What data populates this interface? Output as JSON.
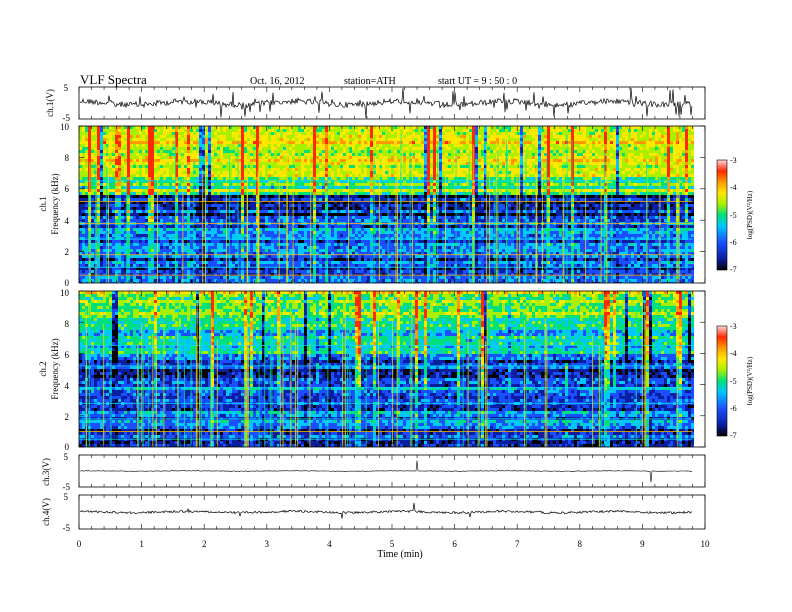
{
  "header": {
    "title": "VLF Spectra",
    "date": "Oct. 16, 2012",
    "station": "station=ATH",
    "start": "start UT = 9 : 50 : 0"
  },
  "colors": {
    "spectro_stops": [
      "#000000",
      "#0a1fa0",
      "#1a4fff",
      "#00c8ff",
      "#00e07a",
      "#a8f000",
      "#ffe800",
      "#ff9a00",
      "#ff2a00",
      "#ffd8d8"
    ],
    "waveform": "#000000"
  },
  "chart_data": [
    {
      "type": "line",
      "panel": "ch1-waveform",
      "ylabel": "ch.1(V)",
      "yticks": [
        "5",
        "-5"
      ],
      "ylim": [
        -5,
        5
      ],
      "xlim": [
        0,
        10
      ],
      "x_end_min": 9.8,
      "trace_level_v": 0.0
    },
    {
      "type": "heatmap",
      "panel": "ch1-spectrogram",
      "ylabel_line1": "ch.1",
      "ylabel_line2": "Frequency (kHz)",
      "yticks": [
        "10",
        "8",
        "6",
        "4",
        "2",
        "0"
      ],
      "ylim_khz": [
        0,
        10
      ],
      "xlim": [
        0,
        10
      ],
      "x_end_min": 9.8,
      "colorbar": {
        "label": "log(PSD)(V²/Hz)",
        "ticks": [
          "-3",
          "-4",
          "-5",
          "-6",
          "-7"
        ],
        "range": [
          -7,
          -3
        ]
      }
    },
    {
      "type": "heatmap",
      "panel": "ch2-spectrogram",
      "ylabel_line1": "ch.2",
      "ylabel_line2": "Frequency (kHz)",
      "yticks": [
        "10",
        "8",
        "6",
        "4",
        "2",
        "0"
      ],
      "ylim_khz": [
        0,
        10
      ],
      "xlim": [
        0,
        10
      ],
      "x_end_min": 9.8,
      "colorbar": {
        "label": "log(PSD)(V²/Hz)",
        "ticks": [
          "-3",
          "-4",
          "-5",
          "-6",
          "-7"
        ],
        "range": [
          -7,
          -3
        ]
      }
    },
    {
      "type": "line",
      "panel": "ch3-waveform",
      "ylabel": "ch.3(V)",
      "yticks": [
        "5",
        "-5"
      ],
      "ylim": [
        -5,
        5
      ],
      "xlim": [
        0,
        10
      ],
      "x_end_min": 9.8,
      "trace_level_v": 0.0
    },
    {
      "type": "line",
      "panel": "ch4-waveform",
      "ylabel": "ch.4(V)",
      "yticks": [
        "5",
        "-5"
      ],
      "ylim": [
        -5,
        5
      ],
      "xlim": [
        0,
        10
      ],
      "x_end_min": 9.8,
      "trace_level_v": 0.0
    }
  ],
  "xaxis": {
    "label": "Time (min)",
    "ticks": [
      "0",
      "1",
      "2",
      "3",
      "4",
      "5",
      "6",
      "7",
      "8",
      "9",
      "10"
    ],
    "range": [
      0,
      10
    ]
  }
}
